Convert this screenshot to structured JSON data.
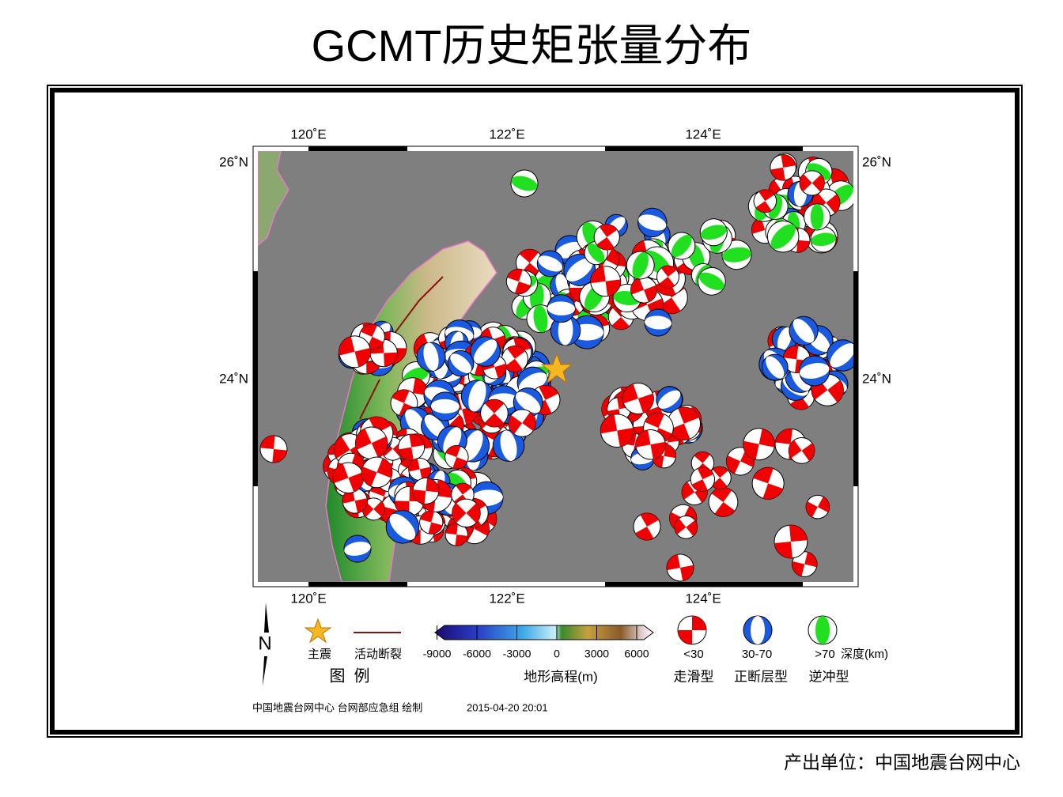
{
  "title": "GCMT历史矩张量分布",
  "map": {
    "lon_labels": [
      "120˚E",
      "122˚E",
      "124˚E"
    ],
    "lat_labels": [
      "26˚N",
      "24˚N"
    ],
    "legend": {
      "north": "N",
      "mainshock": "主震",
      "fault": "活动断裂",
      "legend_title": "图  例",
      "colorbar_ticks": [
        -9000,
        -6000,
        -3000,
        0,
        3000,
        6000
      ],
      "colorbar_title": "地形高程(m)",
      "depth": [
        "<30",
        "30-70",
        ">70"
      ],
      "depth_unit": "深度(km)",
      "mechanisms": [
        "走滑型",
        "正断层型",
        "逆冲型"
      ]
    },
    "credit": "中国地震台网中心 台网部应急组 绘制",
    "timestamp": "2015-04-20 20:01"
  },
  "footer": "产出单位：中国地震台网中心"
}
